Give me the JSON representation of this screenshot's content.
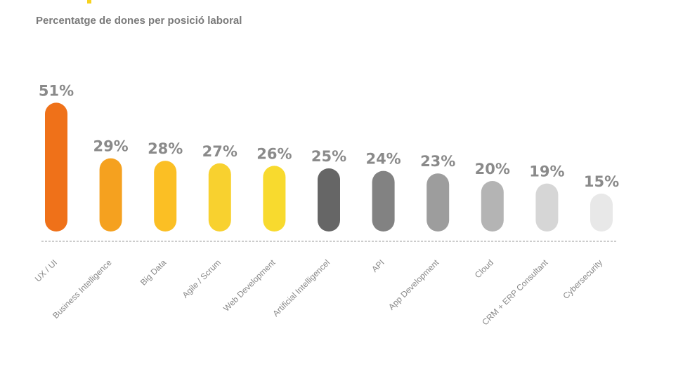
{
  "chart_data": {
    "type": "bar",
    "title": "Percentatge de dones per posició laboral",
    "categories": [
      "UX / UI",
      "Business Intelligence",
      "Big Data",
      "Agile / Scrum",
      "Web Development",
      "Artificial Intelligencel",
      "API",
      "App Development",
      "Cloud",
      "CRM + ERP Consultant",
      "Cybersecurity"
    ],
    "values": [
      51,
      29,
      28,
      27,
      26,
      25,
      24,
      23,
      20,
      19,
      15
    ],
    "value_labels": [
      "51%",
      "29%",
      "28%",
      "27%",
      "26%",
      "25%",
      "24%",
      "23%",
      "20%",
      "19%",
      "15%"
    ],
    "bar_colors": [
      "#ef7119",
      "#f5a11f",
      "#fbbf24",
      "#f8d12f",
      "#f8da2e",
      "#666666",
      "#828282",
      "#9d9d9d",
      "#b4b4b4",
      "#d6d6d6",
      "#e8e8e8"
    ],
    "accent_color": "#f7d21e",
    "grid": false,
    "baseline": "dashed"
  }
}
